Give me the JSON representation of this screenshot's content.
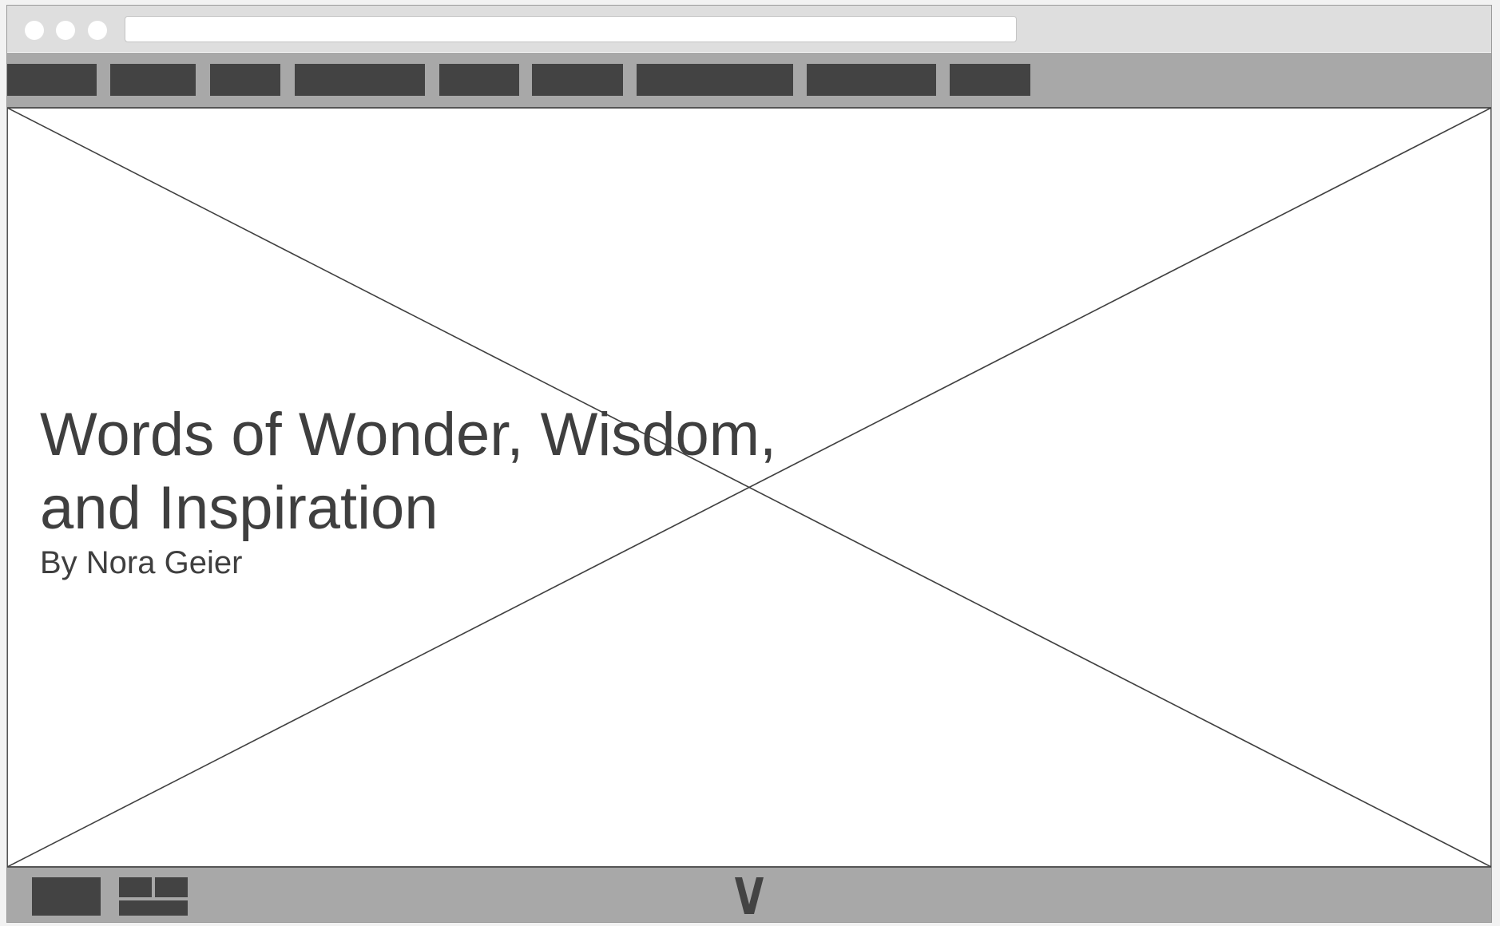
{
  "browser": {
    "address": ""
  },
  "hero": {
    "title_line1": "Words of Wonder, Wisdom,",
    "title_line2": "and Inspiration",
    "byline": "By Nora Geier",
    "background_icon": "image-placeholder-icon"
  },
  "footer": {
    "scroll_icon": "chevron-down-icon",
    "layout_icon": "grid-icon"
  },
  "colors": {
    "chrome": "#dedede",
    "bar": "#a8a8a8",
    "block": "#434343",
    "text": "#3f3f3f"
  }
}
